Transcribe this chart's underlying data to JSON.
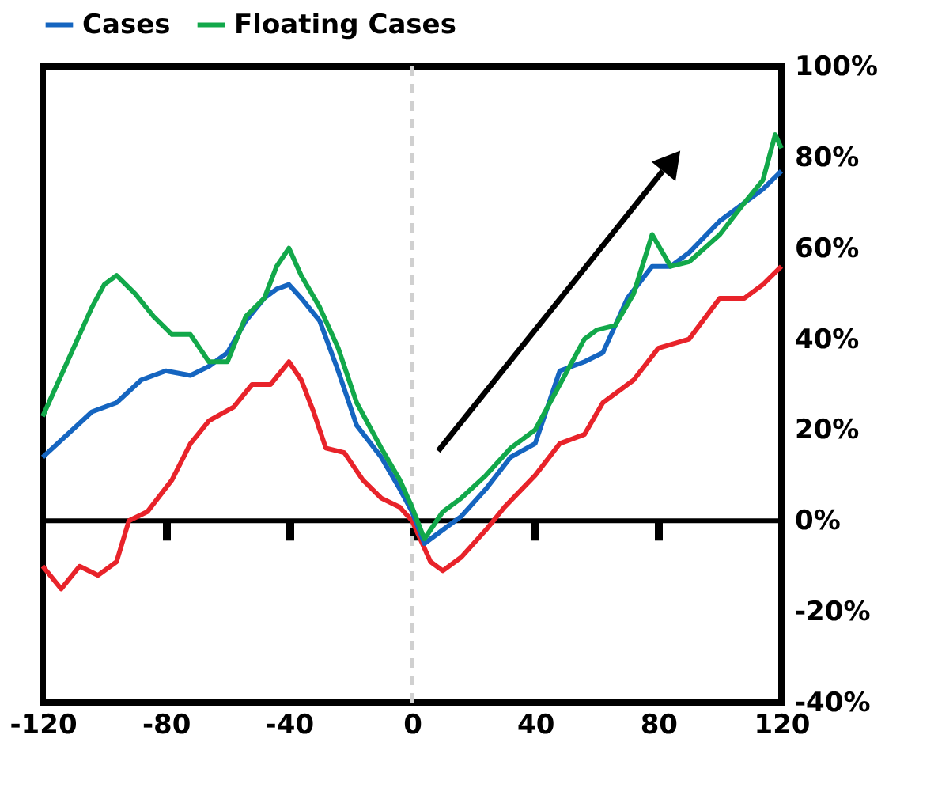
{
  "chart_data": {
    "type": "line",
    "legend": "top",
    "grid": false,
    "line_style": "solid",
    "marker": "none",
    "xlim": [
      -120,
      120
    ],
    "xticks": [
      -120,
      -80,
      -40,
      0,
      40,
      80,
      120
    ],
    "ylim": [
      -40,
      100
    ],
    "yticks": [
      {
        "value": -40,
        "label": "-40%"
      },
      {
        "value": -20,
        "label": "-20%"
      },
      {
        "value": 0,
        "label": "0%"
      },
      {
        "value": 20,
        "label": "20%"
      },
      {
        "value": 40,
        "label": "40%"
      },
      {
        "value": 60,
        "label": "60%"
      },
      {
        "value": 80,
        "label": "80%"
      },
      {
        "value": 100,
        "label": "100%"
      }
    ],
    "ref_lines": [
      {
        "axis": "x",
        "value": 0,
        "color": "#d0d0d0",
        "line_style": "dashed"
      },
      {
        "axis": "y",
        "value": 0,
        "color": "#000000",
        "line_style": "solid"
      }
    ],
    "series": [
      {
        "color": "#e8232a",
        "x": [
          -120,
          -114,
          -108,
          -102,
          -96,
          -92,
          -86,
          -78,
          -72,
          -66,
          -58,
          -52,
          -46,
          -40,
          -36,
          -32,
          -28,
          -22,
          -16,
          -10,
          -4,
          0,
          6,
          10,
          16,
          24,
          30,
          40,
          48,
          56,
          62,
          72,
          80,
          90,
          100,
          108,
          114,
          120
        ],
        "values": [
          -10,
          -15,
          -10,
          -12,
          -9,
          0,
          2,
          9,
          17,
          22,
          25,
          30,
          30,
          35,
          31,
          24,
          16,
          15,
          9,
          5,
          3,
          0,
          -9,
          -11,
          -8,
          -2,
          3,
          10,
          17,
          19,
          26,
          31,
          38,
          40,
          49,
          49,
          52,
          56
        ]
      },
      {
        "name": "Cases",
        "color": "#1565c0",
        "x": [
          -120,
          -112,
          -104,
          -96,
          -88,
          -80,
          -72,
          -66,
          -60,
          -54,
          -48,
          -44,
          -40,
          -36,
          -30,
          -24,
          -18,
          -10,
          -4,
          0,
          4,
          10,
          16,
          24,
          32,
          40,
          48,
          56,
          62,
          70,
          78,
          84,
          90,
          100,
          108,
          114,
          120
        ],
        "values": [
          14,
          19,
          24,
          26,
          31,
          33,
          32,
          34,
          37,
          44,
          49,
          51,
          52,
          49,
          44,
          33,
          21,
          14,
          7,
          2,
          -5,
          -2,
          1,
          7,
          14,
          17,
          33,
          35,
          37,
          49,
          56,
          56,
          59,
          66,
          70,
          73,
          77
        ]
      },
      {
        "name": "Floating Cases",
        "color": "#12a84a",
        "x": [
          -120,
          -112,
          -104,
          -100,
          -96,
          -90,
          -84,
          -78,
          -72,
          -66,
          -60,
          -54,
          -48,
          -44,
          -40,
          -36,
          -30,
          -24,
          -18,
          -10,
          -4,
          0,
          4,
          10,
          16,
          24,
          32,
          40,
          48,
          56,
          60,
          66,
          72,
          78,
          84,
          90,
          100,
          108,
          114,
          118,
          120
        ],
        "values": [
          23,
          35,
          47,
          52,
          54,
          50,
          45,
          41,
          41,
          35,
          35,
          45,
          49,
          56,
          60,
          54,
          47,
          38,
          26,
          16,
          9,
          3,
          -4,
          2,
          5,
          10,
          16,
          20,
          30,
          40,
          42,
          43,
          50,
          63,
          56,
          57,
          63,
          70,
          75,
          85,
          82
        ]
      }
    ]
  }
}
